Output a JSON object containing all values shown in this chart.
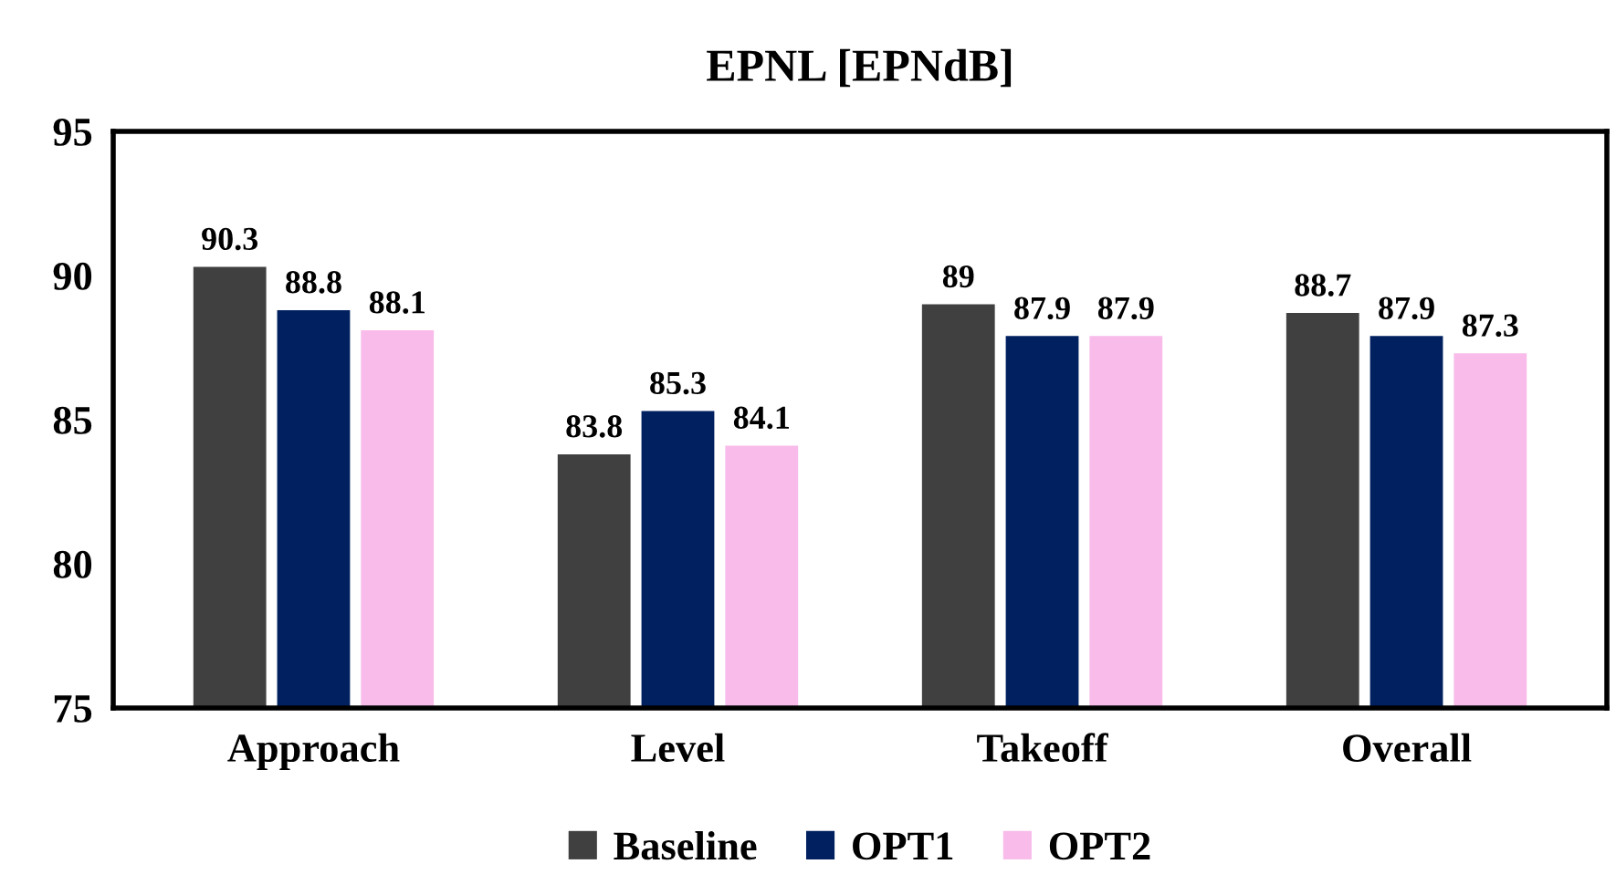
{
  "chart_data": {
    "type": "bar",
    "title": "EPNL [EPNdB]",
    "categories": [
      "Approach",
      "Level",
      "Takeoff",
      "Overall"
    ],
    "series": [
      {
        "name": "Baseline",
        "color": "#404040",
        "values": [
          90.3,
          83.8,
          89,
          88.7
        ]
      },
      {
        "name": "OPT1",
        "color": "#002060",
        "values": [
          88.8,
          85.3,
          87.9,
          87.9
        ]
      },
      {
        "name": "OPT2",
        "color": "#f8bbea",
        "values": [
          88.1,
          84.1,
          87.9,
          87.3
        ]
      }
    ],
    "ylim": [
      75,
      95
    ],
    "yticks": [
      75,
      80,
      85,
      90,
      95
    ],
    "grid": false,
    "legend": "bottom",
    "data_labels": true
  }
}
